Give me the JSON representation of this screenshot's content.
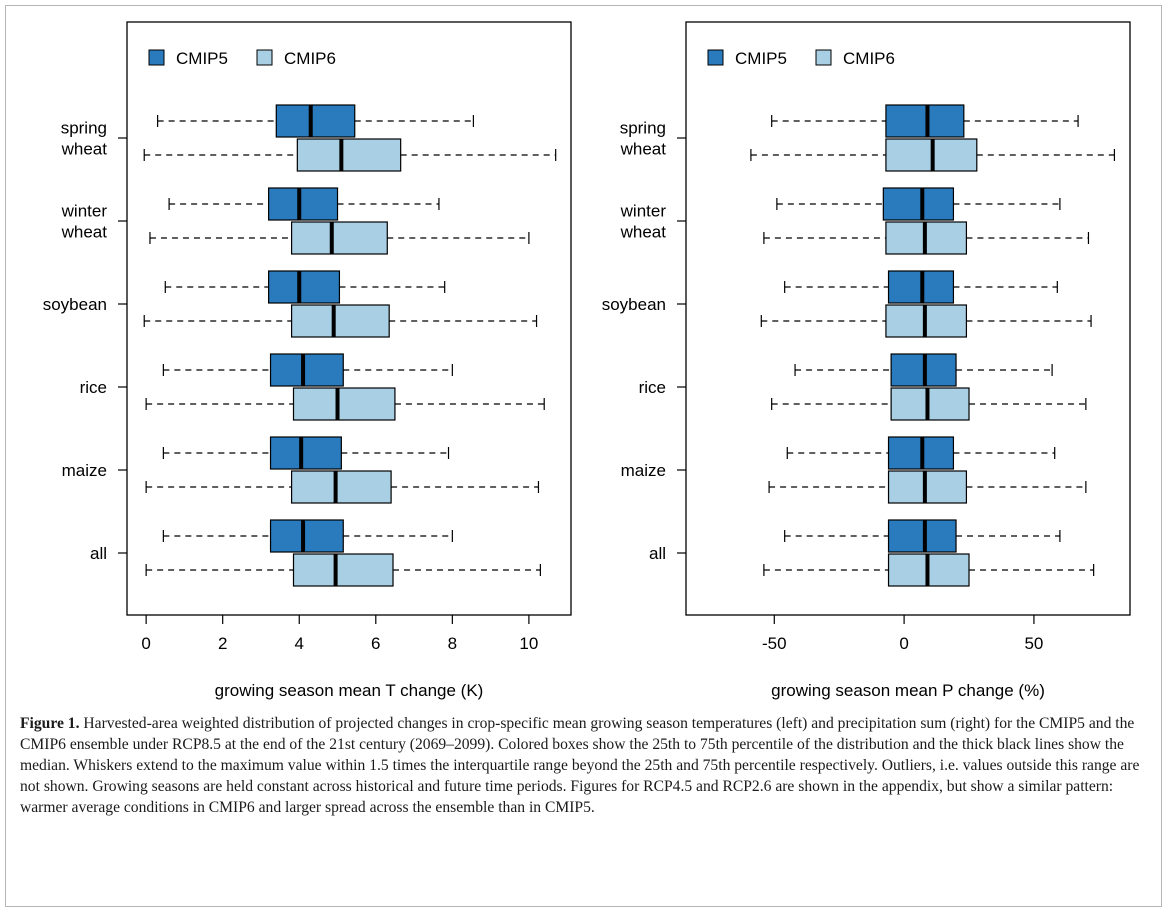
{
  "figure": {
    "label": "Figure 1.",
    "caption": "Harvested-area weighted distribution of projected changes in crop-specific mean growing season temperatures (left) and precipitation sum (right) for the CMIP5 and the CMIP6 ensemble under RCP8.5 at the end of the 21st century (2069–2099). Colored boxes show the 25th to 75th percentile of the distribution and the thick black lines show the median. Whiskers extend to the maximum value within 1.5 times the interquartile range beyond the 25th and 75th percentile respectively. Outliers, i.e. values outside this range are not shown. Growing seasons are held constant across historical and future time periods. Figures for RCP4.5 and RCP2.6 are shown in the appendix, but show a similar pattern: warmer average conditions in CMIP6 and larger spread across the ensemble than in CMIP5."
  },
  "colors": {
    "CMIP5": "#2a7bbd",
    "CMIP6": "#a8cfe4",
    "median": "#000000"
  },
  "chart_data": [
    {
      "type": "boxplot",
      "orientation": "horizontal",
      "xlabel": "growing season mean T change (K)",
      "xlim": [
        -0.5,
        11.1
      ],
      "xticks": [
        0,
        2,
        4,
        6,
        8,
        10
      ],
      "xtick_labels": [
        "0",
        "2",
        "4",
        "6",
        "8",
        "10"
      ],
      "legend": {
        "position": "top-left",
        "entries": [
          "CMIP5",
          "CMIP6"
        ]
      },
      "categories": [
        {
          "label": [
            "spring",
            "wheat"
          ],
          "CMIP5": {
            "whislo": 0.3,
            "q1": 3.4,
            "med": 4.3,
            "q3": 5.45,
            "whishi": 8.55
          },
          "CMIP6": {
            "whislo": -0.05,
            "q1": 3.95,
            "med": 5.1,
            "q3": 6.65,
            "whishi": 10.7
          }
        },
        {
          "label": [
            "winter",
            "wheat"
          ],
          "CMIP5": {
            "whislo": 0.6,
            "q1": 3.2,
            "med": 4.0,
            "q3": 5.0,
            "whishi": 7.65
          },
          "CMIP6": {
            "whislo": 0.1,
            "q1": 3.8,
            "med": 4.85,
            "q3": 6.3,
            "whishi": 10.0
          }
        },
        {
          "label": [
            "soybean"
          ],
          "CMIP5": {
            "whislo": 0.5,
            "q1": 3.2,
            "med": 4.0,
            "q3": 5.05,
            "whishi": 7.8
          },
          "CMIP6": {
            "whislo": -0.05,
            "q1": 3.8,
            "med": 4.9,
            "q3": 6.35,
            "whishi": 10.2
          }
        },
        {
          "label": [
            "rice"
          ],
          "CMIP5": {
            "whislo": 0.45,
            "q1": 3.25,
            "med": 4.1,
            "q3": 5.15,
            "whishi": 8.0
          },
          "CMIP6": {
            "whislo": 0.0,
            "q1": 3.85,
            "med": 5.0,
            "q3": 6.5,
            "whishi": 10.4
          }
        },
        {
          "label": [
            "maize"
          ],
          "CMIP5": {
            "whislo": 0.45,
            "q1": 3.25,
            "med": 4.05,
            "q3": 5.1,
            "whishi": 7.9
          },
          "CMIP6": {
            "whislo": 0.0,
            "q1": 3.8,
            "med": 4.95,
            "q3": 6.4,
            "whishi": 10.25
          }
        },
        {
          "label": [
            "all"
          ],
          "CMIP5": {
            "whislo": 0.45,
            "q1": 3.25,
            "med": 4.1,
            "q3": 5.15,
            "whishi": 8.0
          },
          "CMIP6": {
            "whislo": 0.0,
            "q1": 3.85,
            "med": 4.95,
            "q3": 6.45,
            "whishi": 10.3
          }
        }
      ]
    },
    {
      "type": "boxplot",
      "orientation": "horizontal",
      "xlabel": "growing season mean P change (%)",
      "xlim": [
        -84,
        87
      ],
      "xticks": [
        -50,
        0,
        50
      ],
      "xtick_labels": [
        "-50",
        "0",
        "50"
      ],
      "legend": {
        "position": "top-left",
        "entries": [
          "CMIP5",
          "CMIP6"
        ]
      },
      "categories": [
        {
          "label": [
            "spring",
            "wheat"
          ],
          "CMIP5": {
            "whislo": -51,
            "q1": -7,
            "med": 9,
            "q3": 23,
            "whishi": 67
          },
          "CMIP6": {
            "whislo": -59,
            "q1": -7,
            "med": 11,
            "q3": 28,
            "whishi": 81
          }
        },
        {
          "label": [
            "winter",
            "wheat"
          ],
          "CMIP5": {
            "whislo": -49,
            "q1": -8,
            "med": 7,
            "q3": 19,
            "whishi": 60
          },
          "CMIP6": {
            "whislo": -54,
            "q1": -7,
            "med": 8,
            "q3": 24,
            "whishi": 71
          }
        },
        {
          "label": [
            "soybean"
          ],
          "CMIP5": {
            "whislo": -46,
            "q1": -6,
            "med": 7,
            "q3": 19,
            "whishi": 59
          },
          "CMIP6": {
            "whislo": -55,
            "q1": -7,
            "med": 8,
            "q3": 24,
            "whishi": 72
          }
        },
        {
          "label": [
            "rice"
          ],
          "CMIP5": {
            "whislo": -42,
            "q1": -5,
            "med": 8,
            "q3": 20,
            "whishi": 57
          },
          "CMIP6": {
            "whislo": -51,
            "q1": -5,
            "med": 9,
            "q3": 25,
            "whishi": 70
          }
        },
        {
          "label": [
            "maize"
          ],
          "CMIP5": {
            "whislo": -45,
            "q1": -6,
            "med": 7,
            "q3": 19,
            "whishi": 58
          },
          "CMIP6": {
            "whislo": -52,
            "q1": -6,
            "med": 8,
            "q3": 24,
            "whishi": 70
          }
        },
        {
          "label": [
            "all"
          ],
          "CMIP5": {
            "whislo": -46,
            "q1": -6,
            "med": 8,
            "q3": 20,
            "whishi": 60
          },
          "CMIP6": {
            "whislo": -54,
            "q1": -6,
            "med": 9,
            "q3": 25,
            "whishi": 73
          }
        }
      ]
    }
  ]
}
